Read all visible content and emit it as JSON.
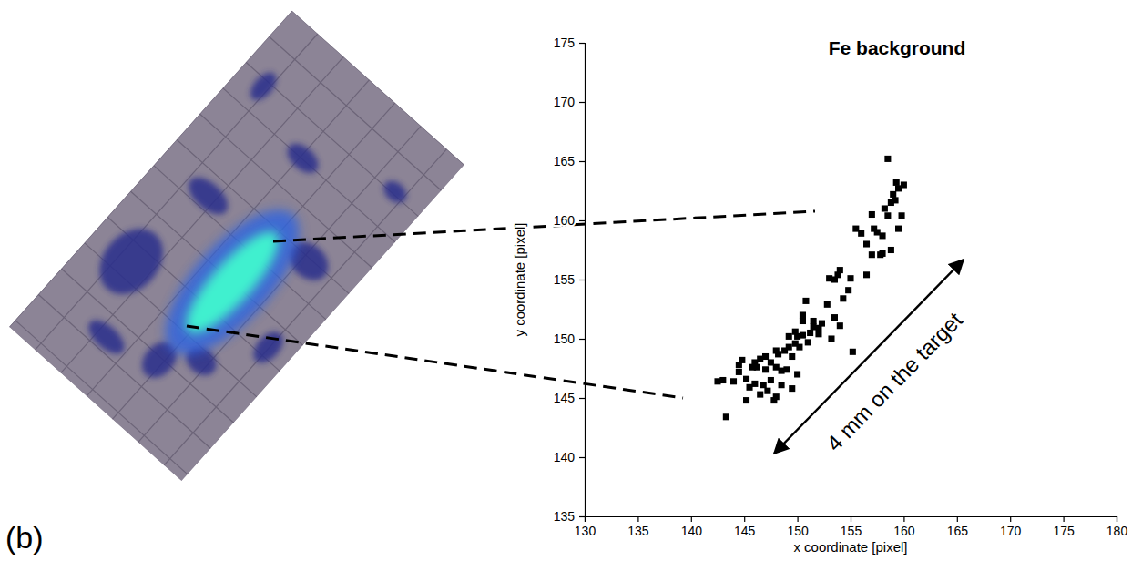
{
  "panel_label": "(b)",
  "chart_data": {
    "type": "scatter",
    "title": "Fe background",
    "x_label": "x coordinate [pixel]",
    "y_label": "y coordinate [pixel]",
    "annotation": "4 mm on the target",
    "color": "#000000",
    "marker": "square",
    "xlim": [
      130,
      180
    ],
    "ylim": [
      135,
      175
    ],
    "xticks": [
      130,
      135,
      140,
      145,
      150,
      155,
      160,
      165,
      170,
      175,
      180
    ],
    "yticks": [
      135,
      140,
      145,
      150,
      155,
      160,
      165,
      170,
      175
    ],
    "x": [
      143.3,
      143.0,
      142.5,
      144.0,
      144.5,
      144.5,
      144.8,
      145.2,
      145.5,
      145.2,
      145.8,
      146.0,
      146.2,
      146.5,
      146.5,
      146.8,
      147.0,
      147.2,
      147.5,
      147.5,
      147.8,
      148.0,
      148.0,
      148.2,
      148.5,
      148.5,
      148.8,
      149.0,
      149.2,
      149.2,
      149.5,
      149.5,
      149.8,
      149.8,
      150.0,
      150.2,
      150.5,
      150.5,
      150.8,
      150.5,
      151.0,
      151.2,
      151.5,
      152.0,
      152.0,
      152.3,
      152.8,
      153.0,
      153.2,
      153.5,
      153.5,
      153.8,
      154.0,
      154.0,
      154.3,
      154.8,
      155.0,
      155.2,
      155.5,
      156.0,
      156.5,
      156.5,
      157.0,
      157.2,
      157.0,
      157.8,
      158.0,
      158.0,
      158.2,
      158.5,
      158.5,
      158.8,
      159.0,
      159.2,
      159.3,
      159.5,
      159.5,
      159.8,
      160.0,
      158.8,
      157.5,
      146.0,
      147.0,
      148.0,
      151.5,
      150.0
    ],
    "y": [
      143.4,
      146.5,
      146.4,
      146.4,
      147.2,
      147.8,
      148.2,
      146.6,
      145.9,
      144.8,
      147.6,
      146.2,
      147.6,
      145.3,
      148.3,
      146.1,
      147.4,
      145.6,
      148.0,
      146.5,
      144.8,
      145.1,
      147.6,
      148.7,
      147.3,
      146.1,
      149.0,
      147.4,
      149.3,
      150.2,
      145.8,
      148.5,
      149.6,
      150.6,
      147.0,
      149.3,
      150.3,
      151.5,
      153.2,
      152.0,
      149.7,
      150.5,
      151.0,
      150.4,
      150.9,
      151.3,
      152.9,
      155.1,
      150.0,
      155.0,
      151.8,
      155.4,
      155.8,
      151.1,
      153.4,
      154.1,
      155.1,
      148.9,
      159.3,
      158.9,
      158.0,
      155.4,
      157.1,
      159.3,
      160.5,
      157.1,
      158.7,
      157.2,
      161.0,
      160.4,
      165.2,
      161.5,
      162.2,
      161.7,
      163.2,
      159.3,
      162.7,
      160.4,
      163.0,
      157.5,
      159.0,
      148.0,
      148.5,
      149.0,
      151.5,
      150.2
    ]
  }
}
